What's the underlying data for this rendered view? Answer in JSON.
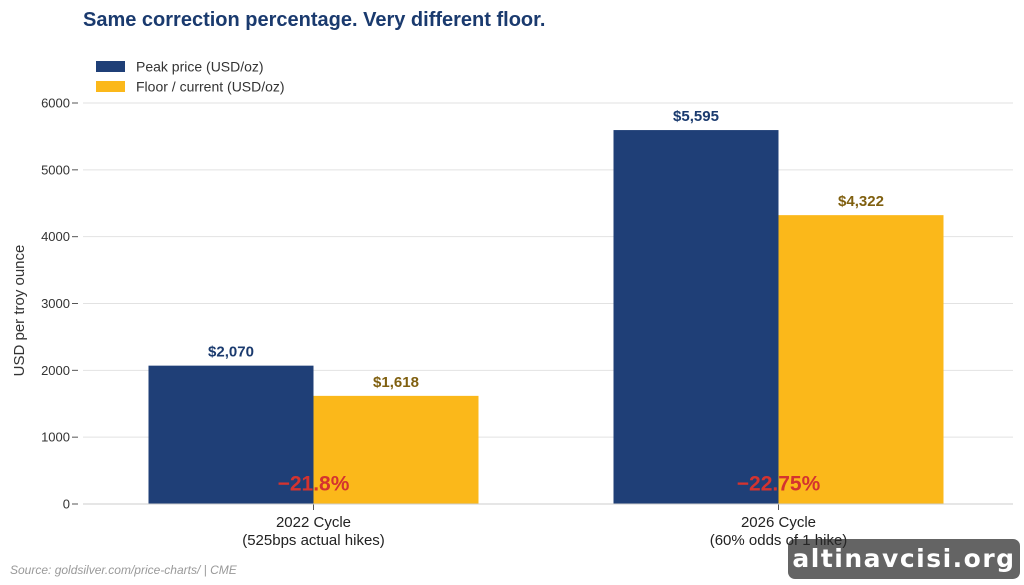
{
  "chart_data": {
    "type": "bar",
    "title": "Same correction percentage. Very different floor.",
    "ylabel": "USD per troy ounce",
    "xlabel": "",
    "ylim": [
      0,
      6000
    ],
    "yticks": [
      0,
      1000,
      2000,
      3000,
      4000,
      5000,
      6000
    ],
    "grid": true,
    "legend_position": "top-left",
    "categories": [
      {
        "line1": "2022 Cycle",
        "line2": "(525bps actual hikes)"
      },
      {
        "line1": "2026 Cycle",
        "line2": "(60% odds of 1 hike)"
      }
    ],
    "series": [
      {
        "name": "Peak price (USD/oz)",
        "color": "#1f3f77",
        "label_color": "#1a3a6e",
        "values": [
          2070,
          5595
        ],
        "labels": [
          "$2,070",
          "$5,595"
        ]
      },
      {
        "name": "Floor / current (USD/oz)",
        "color": "#fbb81a",
        "label_color": "#806010",
        "values": [
          1618,
          4322
        ],
        "labels": [
          "$1,618",
          "$4,322"
        ]
      }
    ],
    "annotations": [
      {
        "category_index": 0,
        "text": "−21.8%",
        "y": 400,
        "color": "#d4332f"
      },
      {
        "category_index": 1,
        "text": "−22.75%",
        "y": 400,
        "color": "#d4332f"
      }
    ],
    "title_color": "#1a3a6e",
    "source": "Source: goldsilver.com/price-charts/ | CME"
  },
  "watermark": "altinavcisi.org"
}
